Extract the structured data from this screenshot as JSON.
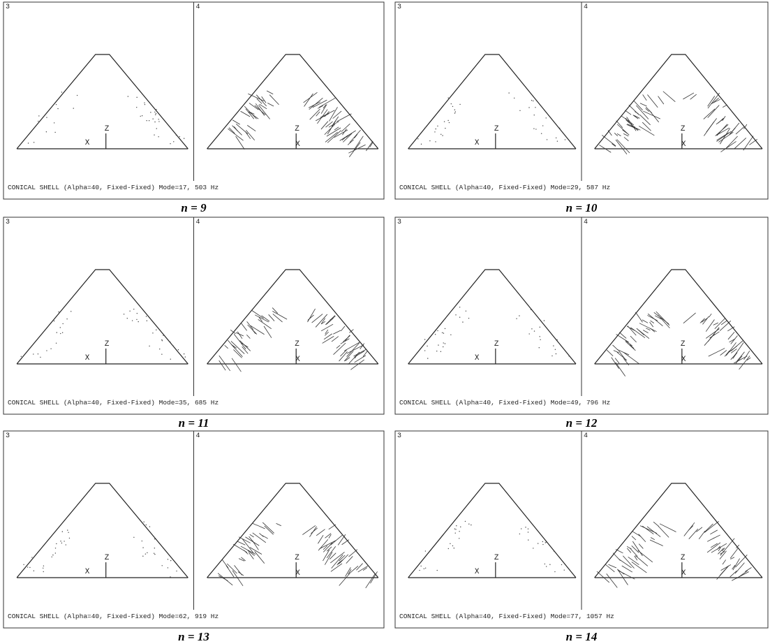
{
  "panels": [
    {
      "viewports": [
        {
          "number": "3",
          "z_label": "Z",
          "x_label": "X"
        },
        {
          "number": "4",
          "z_label": "Z",
          "x_label": "X"
        }
      ],
      "caption": "CONICAL SHELL (Alpha=40, Fixed-Fixed) Mode=17, 503 Hz",
      "n_label": "n = 9"
    },
    {
      "viewports": [
        {
          "number": "3",
          "z_label": "Z",
          "x_label": "X"
        },
        {
          "number": "4",
          "z_label": "Z",
          "x_label": "X"
        }
      ],
      "caption": "CONICAL SHELL (Alpha=40, Fixed-Fixed) Mode=29, 587 Hz",
      "n_label": "n = 10"
    },
    {
      "viewports": [
        {
          "number": "3",
          "z_label": "Z",
          "x_label": "X"
        },
        {
          "number": "4",
          "z_label": "Z",
          "x_label": "X"
        }
      ],
      "caption": "CONICAL SHELL (Alpha=40, Fixed-Fixed) Mode=35, 685 Hz",
      "n_label": "n = 11"
    },
    {
      "viewports": [
        {
          "number": "3",
          "z_label": "Z",
          "x_label": "X"
        },
        {
          "number": "4",
          "z_label": "Z",
          "x_label": "X"
        }
      ],
      "caption": "CONICAL SHELL (Alpha=40, Fixed-Fixed) Mode=49, 796 Hz",
      "n_label": "n = 12"
    },
    {
      "viewports": [
        {
          "number": "3",
          "z_label": "Z",
          "x_label": "X"
        },
        {
          "number": "4",
          "z_label": "Z",
          "x_label": "X"
        }
      ],
      "caption": "CONICAL SHELL (Alpha=40, Fixed-Fixed) Mode=62, 919 Hz",
      "n_label": "n = 13"
    },
    {
      "viewports": [
        {
          "number": "3",
          "z_label": "Z",
          "x_label": "X"
        },
        {
          "number": "4",
          "z_label": "Z",
          "x_label": "X"
        }
      ],
      "caption": "CONICAL SHELL (Alpha=40, Fixed-Fixed) Mode=77, 1057 Hz",
      "n_label": "n = 14"
    }
  ]
}
